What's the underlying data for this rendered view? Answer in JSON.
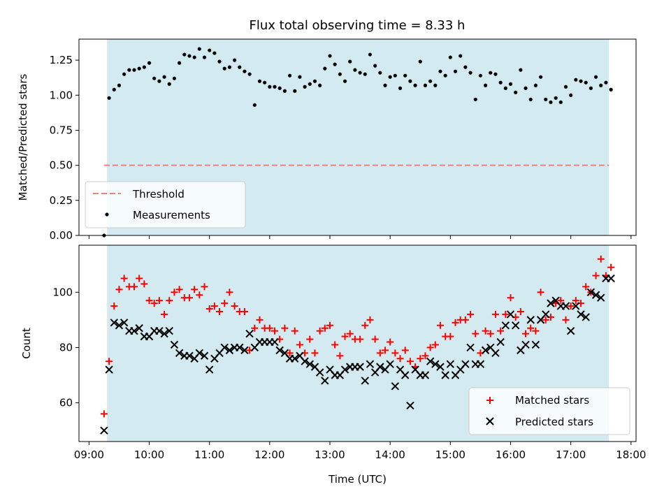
{
  "chart_data": [
    {
      "type": "scatter",
      "title": "Flux total observing time = 8.33 h",
      "xlabel": "",
      "ylabel": "Matched/Predicted stars",
      "ylim": [
        0,
        1.4
      ],
      "yticks": [
        "0.00",
        "0.25",
        "0.50",
        "0.75",
        "1.00",
        "1.25"
      ],
      "shaded_interval": [
        "09:18",
        "17:38"
      ],
      "shade_color": "#d3eaf0",
      "series": [
        {
          "name": "Threshold",
          "style": "dashed-line",
          "color": "#f08080",
          "x": [
            "09:15",
            "17:38"
          ],
          "y": [
            0.5,
            0.5
          ]
        },
        {
          "name": "Measurements",
          "style": "dot",
          "color": "#000000",
          "x": [
            "09:15",
            "09:20",
            "09:25",
            "09:30",
            "09:35",
            "09:40",
            "09:45",
            "09:50",
            "09:55",
            "10:00",
            "10:05",
            "10:10",
            "10:15",
            "10:20",
            "10:25",
            "10:30",
            "10:35",
            "10:40",
            "10:45",
            "10:50",
            "10:55",
            "11:00",
            "11:05",
            "11:10",
            "11:15",
            "11:20",
            "11:25",
            "11:30",
            "11:35",
            "11:40",
            "11:45",
            "11:50",
            "11:55",
            "12:00",
            "12:05",
            "12:10",
            "12:15",
            "12:20",
            "12:25",
            "12:30",
            "12:35",
            "12:40",
            "12:45",
            "12:50",
            "12:55",
            "13:00",
            "13:05",
            "13:10",
            "13:15",
            "13:20",
            "13:25",
            "13:30",
            "13:35",
            "13:40",
            "13:45",
            "13:50",
            "13:55",
            "14:00",
            "14:05",
            "14:10",
            "14:15",
            "14:20",
            "14:25",
            "14:30",
            "14:35",
            "14:40",
            "14:45",
            "14:50",
            "14:55",
            "15:00",
            "15:05",
            "15:10",
            "15:15",
            "15:20",
            "15:25",
            "15:30",
            "15:35",
            "15:40",
            "15:45",
            "15:50",
            "15:55",
            "16:00",
            "16:05",
            "16:10",
            "16:15",
            "16:20",
            "16:25",
            "16:30",
            "16:35",
            "16:40",
            "16:45",
            "16:50",
            "16:55",
            "17:00",
            "17:05",
            "17:10",
            "17:15",
            "17:20",
            "17:25",
            "17:30",
            "17:35",
            "17:40"
          ],
          "y": [
            0.0,
            0.98,
            1.04,
            1.07,
            1.15,
            1.18,
            1.18,
            1.19,
            1.2,
            1.23,
            1.12,
            1.1,
            1.13,
            1.08,
            1.12,
            1.23,
            1.29,
            1.28,
            1.27,
            1.33,
            1.27,
            1.32,
            1.3,
            1.24,
            1.19,
            1.2,
            1.25,
            1.2,
            1.17,
            1.15,
            0.93,
            1.1,
            1.09,
            1.06,
            1.06,
            1.05,
            1.03,
            1.14,
            1.03,
            1.13,
            1.06,
            1.08,
            1.1,
            1.07,
            1.19,
            1.28,
            1.22,
            1.15,
            1.1,
            1.24,
            1.18,
            1.16,
            1.15,
            1.29,
            1.21,
            1.16,
            1.07,
            1.13,
            1.14,
            1.05,
            1.14,
            1.1,
            1.07,
            1.24,
            1.07,
            1.1,
            1.07,
            1.17,
            1.14,
            1.27,
            1.17,
            1.28,
            1.2,
            1.16,
            0.97,
            1.14,
            1.07,
            1.16,
            1.15,
            1.09,
            1.05,
            1.08,
            1.02,
            1.18,
            1.05,
            0.97,
            1.07,
            1.13,
            0.97,
            0.95,
            0.98,
            0.95,
            1.06,
            1.0,
            1.11,
            1.1,
            1.09,
            1.05,
            1.13,
            1.07,
            1.09,
            1.04
          ]
        }
      ],
      "legend": {
        "placement": "lower left",
        "entries": [
          "Threshold",
          "Measurements"
        ]
      }
    },
    {
      "type": "scatter",
      "title": "",
      "xlabel": "Time (UTC)",
      "ylabel": "Count",
      "ylim": [
        46,
        117
      ],
      "xlim": [
        "08:50",
        "18:05"
      ],
      "xticks": [
        "09:00",
        "10:00",
        "11:00",
        "12:00",
        "13:00",
        "14:00",
        "15:00",
        "16:00",
        "17:00",
        "18:00"
      ],
      "yticks": [
        "60",
        "80",
        "100"
      ],
      "shaded_interval": [
        "09:18",
        "17:38"
      ],
      "shade_color": "#d3eaf0",
      "series": [
        {
          "name": "Matched stars",
          "marker": "+",
          "color": "#ff0000",
          "x": [
            "09:15",
            "09:20",
            "09:25",
            "09:30",
            "09:35",
            "09:40",
            "09:45",
            "09:50",
            "09:55",
            "10:00",
            "10:05",
            "10:10",
            "10:15",
            "10:20",
            "10:25",
            "10:30",
            "10:35",
            "10:40",
            "10:45",
            "10:50",
            "10:55",
            "11:00",
            "11:05",
            "11:10",
            "11:15",
            "11:20",
            "11:25",
            "11:30",
            "11:35",
            "11:40",
            "11:45",
            "11:50",
            "11:55",
            "12:00",
            "12:05",
            "12:10",
            "12:15",
            "12:20",
            "12:25",
            "12:30",
            "12:35",
            "12:40",
            "12:45",
            "12:50",
            "12:55",
            "13:00",
            "13:05",
            "13:10",
            "13:15",
            "13:20",
            "13:25",
            "13:30",
            "13:35",
            "13:40",
            "13:45",
            "13:50",
            "13:55",
            "14:00",
            "14:05",
            "14:10",
            "14:15",
            "14:20",
            "14:25",
            "14:30",
            "14:35",
            "14:40",
            "14:45",
            "14:50",
            "14:55",
            "15:00",
            "15:05",
            "15:10",
            "15:15",
            "15:20",
            "15:25",
            "15:30",
            "15:35",
            "15:40",
            "15:45",
            "15:50",
            "15:55",
            "16:00",
            "16:05",
            "16:10",
            "16:15",
            "16:20",
            "16:25",
            "16:30",
            "16:35",
            "16:40",
            "16:45",
            "16:50",
            "16:55",
            "17:00",
            "17:05",
            "17:10",
            "17:15",
            "17:20",
            "17:25",
            "17:30",
            "17:35",
            "17:40"
          ],
          "y": [
            56,
            75,
            95,
            101,
            105,
            102,
            102,
            105,
            103,
            97,
            96,
            97,
            92,
            97,
            100,
            101,
            98,
            98,
            101,
            99,
            102,
            94,
            95,
            93,
            96,
            100,
            95,
            93,
            93,
            79,
            87,
            90,
            87,
            87,
            86,
            83,
            87,
            78,
            86,
            81,
            78,
            83,
            78,
            86,
            87,
            88,
            81,
            77,
            84,
            85,
            83,
            83,
            88,
            90,
            83,
            78,
            79,
            82,
            78,
            76,
            79,
            75,
            73,
            76,
            77,
            80,
            81,
            88,
            84,
            84,
            89,
            90,
            90,
            92,
            85,
            78,
            86,
            85,
            92,
            86,
            92,
            98,
            91,
            93,
            85,
            87,
            86,
            100,
            90,
            91,
            96,
            97,
            90,
            95,
            97,
            96,
            102,
            100,
            106,
            112,
            106,
            109
          ]
        },
        {
          "name": "Predicted stars",
          "marker": "x",
          "color": "#000000",
          "x": [
            "09:15",
            "09:20",
            "09:25",
            "09:30",
            "09:35",
            "09:40",
            "09:45",
            "09:50",
            "09:55",
            "10:00",
            "10:05",
            "10:10",
            "10:15",
            "10:20",
            "10:25",
            "10:30",
            "10:35",
            "10:40",
            "10:45",
            "10:50",
            "10:55",
            "11:00",
            "11:05",
            "11:10",
            "11:15",
            "11:20",
            "11:25",
            "11:30",
            "11:35",
            "11:40",
            "11:45",
            "11:50",
            "11:55",
            "12:00",
            "12:05",
            "12:10",
            "12:15",
            "12:20",
            "12:25",
            "12:30",
            "12:35",
            "12:40",
            "12:45",
            "12:50",
            "12:55",
            "13:00",
            "13:05",
            "13:10",
            "13:15",
            "13:20",
            "13:25",
            "13:30",
            "13:35",
            "13:40",
            "13:45",
            "13:50",
            "13:55",
            "14:00",
            "14:05",
            "14:10",
            "14:15",
            "14:20",
            "14:25",
            "14:30",
            "14:35",
            "14:40",
            "14:45",
            "14:50",
            "14:55",
            "15:00",
            "15:05",
            "15:10",
            "15:15",
            "15:20",
            "15:25",
            "15:30",
            "15:35",
            "15:40",
            "15:45",
            "15:50",
            "15:55",
            "16:00",
            "16:05",
            "16:10",
            "16:15",
            "16:20",
            "16:25",
            "16:30",
            "16:35",
            "16:40",
            "16:45",
            "16:50",
            "16:55",
            "17:00",
            "17:05",
            "17:10",
            "17:15",
            "17:20",
            "17:25",
            "17:30",
            "17:35",
            "17:40"
          ],
          "y": [
            50,
            72,
            89,
            88,
            89,
            86,
            86,
            87,
            84,
            84,
            86,
            86,
            85,
            86,
            81,
            78,
            77,
            77,
            76,
            78,
            77,
            72,
            76,
            78,
            80,
            79,
            80,
            80,
            79,
            85,
            80,
            82,
            82,
            82,
            82,
            79,
            78,
            76,
            76,
            77,
            75,
            74,
            73,
            71,
            68,
            72,
            70,
            70,
            72,
            73,
            73,
            73,
            68,
            74,
            71,
            73,
            72,
            74,
            66,
            72,
            70,
            59,
            72,
            70,
            70,
            75,
            74,
            73,
            70,
            74,
            70,
            72,
            74,
            80,
            74,
            74,
            79,
            80,
            78,
            82,
            88,
            92,
            88,
            79,
            81,
            90,
            81,
            90,
            92,
            96,
            97,
            95,
            95,
            86,
            95,
            92,
            91,
            100,
            99,
            98,
            105,
            105
          ]
        }
      ],
      "legend": {
        "placement": "lower right",
        "entries": [
          "Matched stars",
          "Predicted stars"
        ]
      }
    }
  ]
}
